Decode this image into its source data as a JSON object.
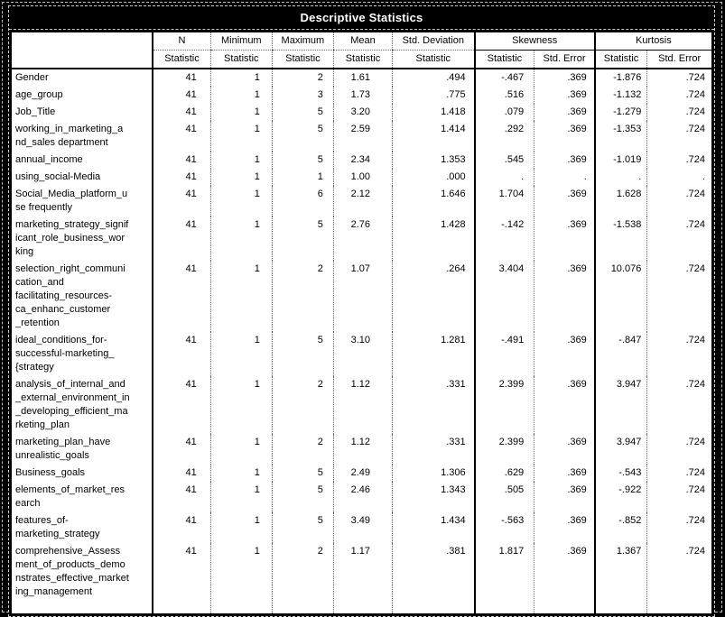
{
  "colors": {
    "page_background": "#000000",
    "title_background": "#000000",
    "title_text": "#ffffff",
    "cell_background": "#ffffff",
    "cell_text": "#000000",
    "grid_line": "#666666"
  },
  "chart_data": {
    "type": "table",
    "title": "Descriptive Statistics",
    "missing_value_symbol": ".",
    "layout": {
      "grid": "vertical-separators-only",
      "legend": "none",
      "header_rows": 2
    },
    "header": {
      "row_label_header": "",
      "columns": [
        {
          "label": "N",
          "sub": "Statistic"
        },
        {
          "label": "Minimum",
          "sub": "Statistic"
        },
        {
          "label": "Maximum",
          "sub": "Statistic"
        },
        {
          "label": "Mean",
          "sub": "Statistic"
        },
        {
          "label": "Std. Deviation",
          "sub": "Statistic"
        },
        {
          "label": "Skewness",
          "subs": [
            "Statistic",
            "Std. Error"
          ]
        },
        {
          "label": "Kurtosis",
          "subs": [
            "Statistic",
            "Std. Error"
          ]
        }
      ]
    },
    "rows": [
      {
        "label": "Gender",
        "values": [
          "41",
          "1",
          "2",
          "1.61",
          ".494",
          "-.467",
          ".369",
          "-1.876",
          ".724"
        ]
      },
      {
        "label": "age_group",
        "values": [
          "41",
          "1",
          "3",
          "1.73",
          ".775",
          ".516",
          ".369",
          "-1.132",
          ".724"
        ]
      },
      {
        "label": "Job_Title",
        "values": [
          "41",
          "1",
          "5",
          "3.20",
          "1.418",
          ".079",
          ".369",
          "-1.279",
          ".724"
        ]
      },
      {
        "label": "working_in_marketing_a\nnd_sales department",
        "values": [
          "41",
          "1",
          "5",
          "2.59",
          "1.414",
          ".292",
          ".369",
          "-1.353",
          ".724"
        ]
      },
      {
        "label": "annual_income",
        "values": [
          "41",
          "1",
          "5",
          "2.34",
          "1.353",
          ".545",
          ".369",
          "-1.019",
          ".724"
        ]
      },
      {
        "label": "using_social-Media",
        "values": [
          "41",
          "1",
          "1",
          "1.00",
          ".000",
          ".",
          ".",
          ".",
          "."
        ]
      },
      {
        "label": "Social_Media_platform_u\nse frequently",
        "values": [
          "41",
          "1",
          "6",
          "2.12",
          "1.646",
          "1.704",
          ".369",
          "1.628",
          ".724"
        ]
      },
      {
        "label": "marketing_strategy_signif\nicant_role_business_wor\nking",
        "values": [
          "41",
          "1",
          "5",
          "2.76",
          "1.428",
          "-.142",
          ".369",
          "-1.538",
          ".724"
        ]
      },
      {
        "label": "selection_right_communi\ncation_and\nfacilitating_resources-\nca_enhanc_customer\n_retention",
        "values": [
          "41",
          "1",
          "2",
          "1.07",
          ".264",
          "3.404",
          ".369",
          "10.076",
          ".724"
        ]
      },
      {
        "label": "ideal_conditions_for-\nsuccessful-marketing_\n{strategy",
        "values": [
          "41",
          "1",
          "5",
          "3.10",
          "1.281",
          "-.491",
          ".369",
          "-.847",
          ".724"
        ]
      },
      {
        "label": "analysis_of_internal_and\n_external_environment_in\n_developing_efficient_ma\nrketing_plan",
        "values": [
          "41",
          "1",
          "2",
          "1.12",
          ".331",
          "2.399",
          ".369",
          "3.947",
          ".724"
        ]
      },
      {
        "label": "marketing_plan_have\nunrealistic_goals",
        "values": [
          "41",
          "1",
          "2",
          "1.12",
          ".331",
          "2.399",
          ".369",
          "3.947",
          ".724"
        ]
      },
      {
        "label": "Business_goals",
        "values": [
          "41",
          "1",
          "5",
          "2.49",
          "1.306",
          ".629",
          ".369",
          "-.543",
          ".724"
        ]
      },
      {
        "label": "elements_of_market_res\nearch",
        "values": [
          "41",
          "1",
          "5",
          "2.46",
          "1.343",
          ".505",
          ".369",
          "-.922",
          ".724"
        ]
      },
      {
        "label": "features_of-\nmarketing_strategy",
        "values": [
          "41",
          "1",
          "5",
          "3.49",
          "1.434",
          "-.563",
          ".369",
          "-.852",
          ".724"
        ]
      },
      {
        "label": "comprehensive_Assess\nment_of_products_demo\nnstrates_effective_market\ning_management",
        "values": [
          "41",
          "1",
          "2",
          "1.17",
          ".381",
          "1.817",
          ".369",
          "1.367",
          ".724"
        ]
      }
    ]
  }
}
